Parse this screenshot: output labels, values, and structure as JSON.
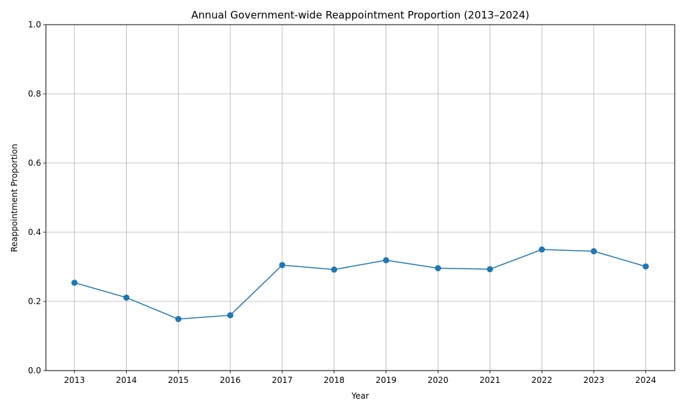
{
  "chart_data": {
    "type": "line",
    "title": "Annual Government-wide Reappointment Proportion (2013–2024)",
    "xlabel": "Year",
    "ylabel": "Reappointment Proportion",
    "categories": [
      "2013",
      "2014",
      "2015",
      "2016",
      "2017",
      "2018",
      "2019",
      "2020",
      "2021",
      "2022",
      "2023",
      "2024"
    ],
    "series": [
      {
        "values": [
          0.254,
          0.211,
          0.149,
          0.16,
          0.305,
          0.292,
          0.319,
          0.296,
          0.293,
          0.35,
          0.345,
          0.301
        ],
        "color": "#1f77b4",
        "marker": "circle"
      }
    ],
    "ylim": [
      0.0,
      1.0
    ],
    "yticks": [
      "0.0",
      "0.2",
      "0.4",
      "0.6",
      "0.8",
      "1.0"
    ],
    "grid": true
  }
}
